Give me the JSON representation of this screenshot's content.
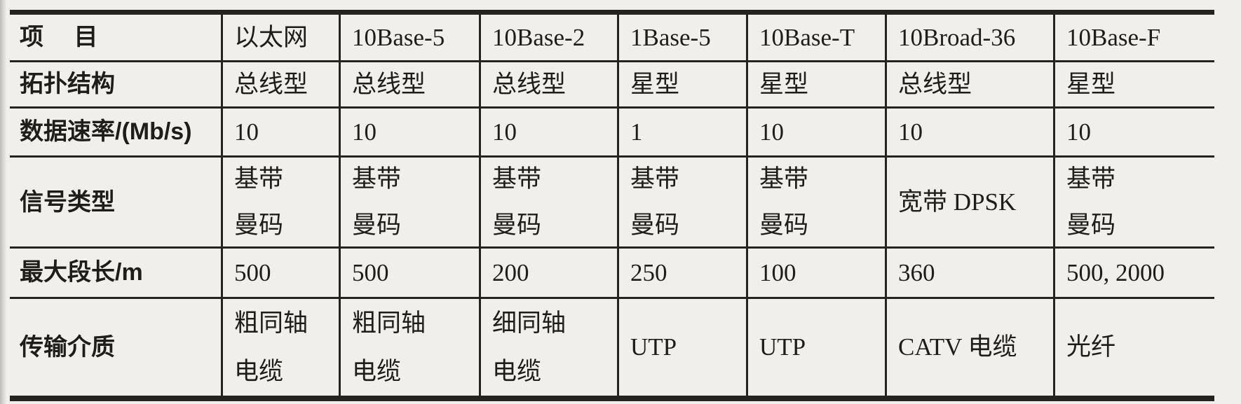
{
  "table": {
    "header": [
      "项 目",
      "以太网",
      "10Base-5",
      "10Base-2",
      "1Base-5",
      "10Base-T",
      "10Broad-36",
      "10Base-F"
    ],
    "rows": [
      {
        "label": "拓扑结构",
        "values": [
          "总线型",
          "总线型",
          "总线型",
          "星型",
          "星型",
          "总线型",
          "星型"
        ]
      },
      {
        "label": "数据速率/(Mb/s)",
        "values": [
          "10",
          "10",
          "10",
          "1",
          "10",
          "10",
          "10"
        ]
      },
      {
        "label": "信号类型",
        "values": [
          "基带\n曼码",
          "基带\n曼码",
          "基带\n曼码",
          "基带\n曼码",
          "基带\n曼码",
          "宽带 DPSK",
          "基带\n曼码"
        ]
      },
      {
        "label": "最大段长/m",
        "values": [
          "500",
          "500",
          "200",
          "250",
          "100",
          "360",
          "500, 2000"
        ]
      },
      {
        "label": "传输介质",
        "values": [
          "粗同轴\n电缆",
          "粗同轴\n电缆",
          "细同轴\n电缆",
          "UTP",
          "UTP",
          "CATV 电缆",
          "光纤"
        ]
      }
    ]
  },
  "colors": {
    "paper": "#f0efeb",
    "ink": "#1f1d1a",
    "rule": "#26231f"
  }
}
